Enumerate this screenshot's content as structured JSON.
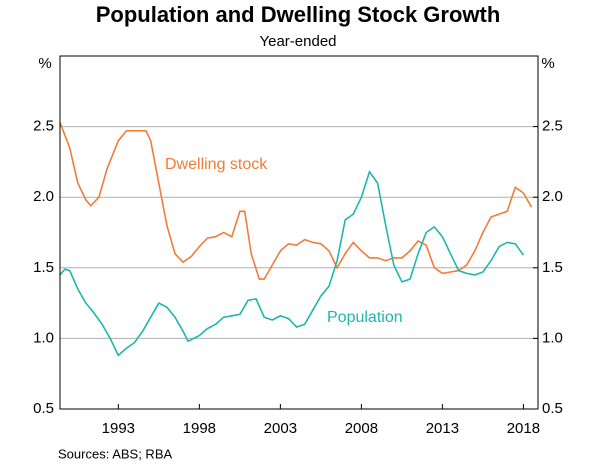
{
  "chart_data": {
    "type": "line",
    "title": "Population and Dwelling Stock Growth",
    "subtitle": "Year-ended",
    "y_unit": "%",
    "y2_unit": "%",
    "source": "Sources:   ABS; RBA",
    "xlim": [
      1989.4,
      2018.9
    ],
    "xticks": [
      1993,
      1998,
      2003,
      2008,
      2013,
      2018
    ],
    "ylim": [
      0.5,
      3.0
    ],
    "yticks": [
      0.5,
      {
        "value": 1.0,
        "label": "1.0"
      },
      1.5,
      {
        "value": 2.0,
        "label": "2.0"
      },
      2.5
    ],
    "y2lim": [
      0.5,
      3.0
    ],
    "y2ticks": [
      0.5,
      {
        "value": 1.0,
        "label": "1.0"
      },
      1.5,
      {
        "value": 2.0,
        "label": "2.0"
      },
      2.5
    ],
    "grid": true,
    "series": [
      {
        "name": "Dwelling stock",
        "color": "#f07c3a",
        "x": [
          1989.4,
          1990,
          1990.5,
          1991,
          1991.3,
          1991.8,
          1992.3,
          1993,
          1993.5,
          1994,
          1994.7,
          1995,
          1995.5,
          1996,
          1996.5,
          1997,
          1997.5,
          1998,
          1998.5,
          1999,
          1999.5,
          2000,
          2000.5,
          2000.8,
          2001.2,
          2001.7,
          2002,
          2002.5,
          2003,
          2003.5,
          2004,
          2004.5,
          2005,
          2005.5,
          2006,
          2006.5,
          2007,
          2007.5,
          2008,
          2008.5,
          2009,
          2009.5,
          2010,
          2010.5,
          2011,
          2011.5,
          2012,
          2012.5,
          2013,
          2013.5,
          2014,
          2014.5,
          2015,
          2015.5,
          2016,
          2016.5,
          2017,
          2017.5,
          2018,
          2018.5
        ],
        "values": [
          2.53,
          2.35,
          2.1,
          1.98,
          1.94,
          2.0,
          2.2,
          2.4,
          2.47,
          2.47,
          2.47,
          2.4,
          2.1,
          1.8,
          1.6,
          1.54,
          1.58,
          1.65,
          1.71,
          1.72,
          1.75,
          1.72,
          1.9,
          1.9,
          1.6,
          1.42,
          1.42,
          1.52,
          1.62,
          1.67,
          1.66,
          1.7,
          1.68,
          1.67,
          1.62,
          1.5,
          1.6,
          1.68,
          1.62,
          1.57,
          1.57,
          1.55,
          1.57,
          1.57,
          1.62,
          1.69,
          1.66,
          1.5,
          1.46,
          1.47,
          1.48,
          1.52,
          1.62,
          1.75,
          1.86,
          1.88,
          1.9,
          2.07,
          2.03,
          1.93
        ]
      },
      {
        "name": "Population",
        "color": "#1fb5b0",
        "x": [
          1989.4,
          1989.7,
          1990,
          1990.5,
          1991,
          1991.5,
          1992,
          1992.5,
          1993,
          1993.5,
          1994,
          1994.5,
          1995,
          1995.5,
          1996,
          1996.5,
          1997,
          1997.3,
          1998,
          1998.5,
          1999,
          1999.5,
          2000,
          2000.5,
          2001,
          2001.5,
          2002,
          2002.5,
          2003,
          2003.5,
          2004,
          2004.5,
          2005,
          2005.5,
          2006,
          2006.5,
          2007,
          2007.5,
          2008,
          2008.5,
          2009,
          2009.5,
          2010,
          2010.5,
          2011,
          2011.5,
          2012,
          2012.5,
          2013,
          2013.5,
          2014,
          2014.5,
          2015,
          2015.5,
          2016,
          2016.5,
          2017,
          2017.5,
          2018
        ],
        "values": [
          1.45,
          1.49,
          1.48,
          1.35,
          1.25,
          1.18,
          1.1,
          1.0,
          0.88,
          0.93,
          0.97,
          1.05,
          1.15,
          1.25,
          1.22,
          1.15,
          1.05,
          0.98,
          1.02,
          1.07,
          1.1,
          1.15,
          1.16,
          1.17,
          1.27,
          1.28,
          1.15,
          1.13,
          1.16,
          1.14,
          1.08,
          1.1,
          1.2,
          1.3,
          1.37,
          1.55,
          1.84,
          1.88,
          2.0,
          2.18,
          2.1,
          1.8,
          1.52,
          1.4,
          1.42,
          1.6,
          1.75,
          1.79,
          1.72,
          1.6,
          1.48,
          1.46,
          1.45,
          1.47,
          1.55,
          1.65,
          1.68,
          1.67,
          1.59
        ]
      }
    ]
  }
}
